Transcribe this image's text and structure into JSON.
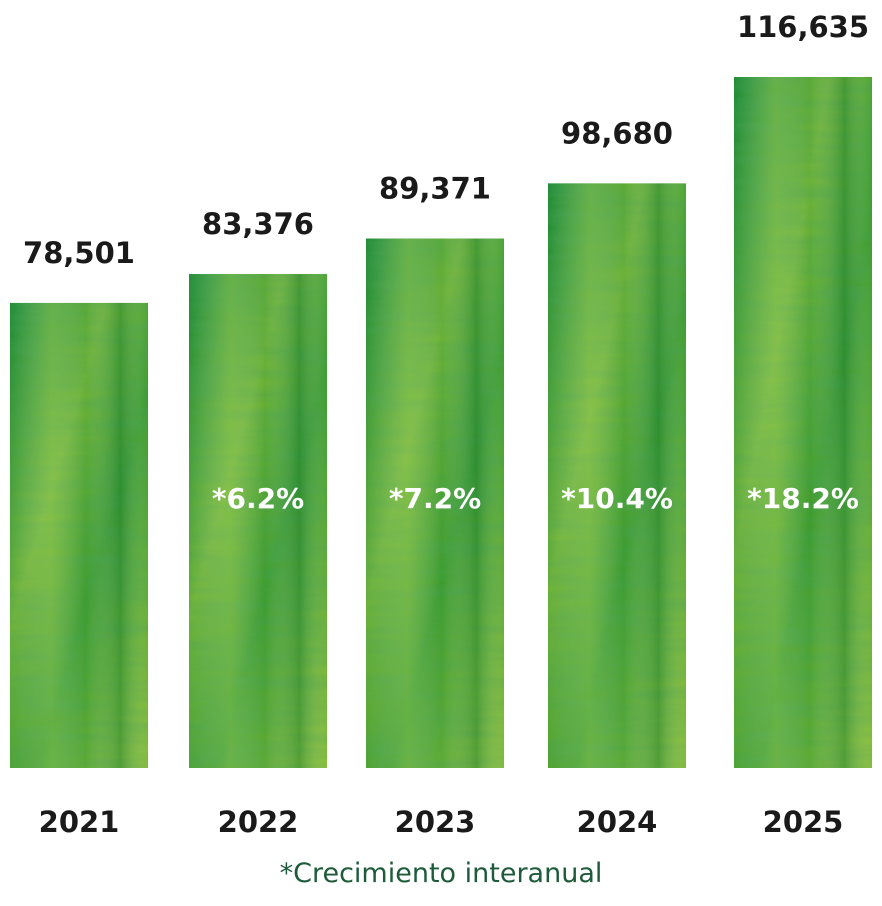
{
  "chart_data": {
    "type": "bar",
    "categories": [
      "2021",
      "2022",
      "2023",
      "2024",
      "2025"
    ],
    "values": [
      78501,
      83376,
      89371,
      98680,
      116635
    ],
    "value_labels": [
      "78,501",
      "83,376",
      "89,371",
      "98,680",
      "116,635"
    ],
    "growth_labels": [
      "",
      "*6.2%",
      "*7.2%",
      "*10.4%",
      "*18.2%"
    ],
    "footnote": "*Crecimiento interanual",
    "colors": {
      "bar_dark": "#13803a",
      "bar_mid": "#3a9a2c",
      "bar_light": "#8cbf3a",
      "footnote": "#1e5b3a",
      "label": "#1a1a1a"
    }
  }
}
